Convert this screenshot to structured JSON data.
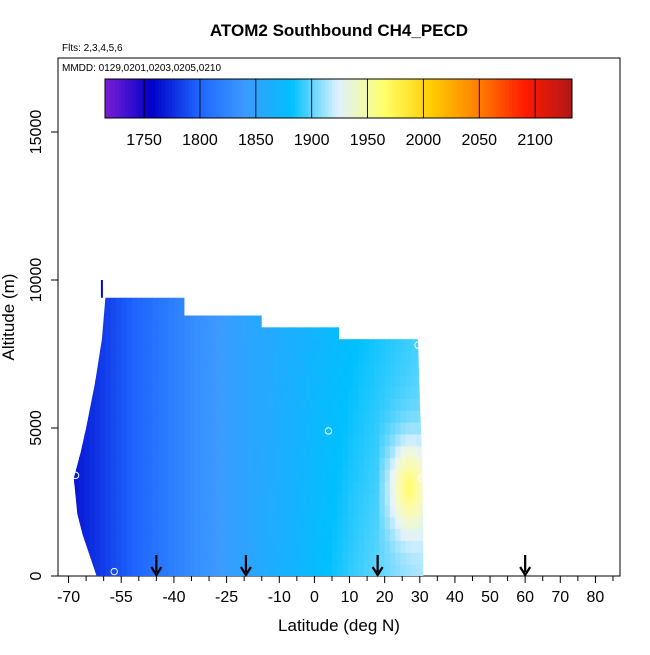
{
  "chart_data": {
    "type": "heatmap",
    "title": "ATOM2 Southbound CH4_PECD",
    "flights_label": "Flts: 2,3,4,5,6",
    "dates_label": "MMDD: 0129,0201,0203,0205,0210",
    "xlabel": "Latitude (deg N)",
    "ylabel": "Altitude (m)",
    "xlim": [
      -73,
      87
    ],
    "ylim": [
      0,
      17500
    ],
    "xticks": [
      -70,
      -55,
      -40,
      -25,
      -10,
      0,
      10,
      20,
      30,
      40,
      50,
      60,
      70,
      80
    ],
    "xminor_step": 5,
    "yticks": [
      0,
      5000,
      10000,
      15000
    ],
    "colorbar": {
      "range": [
        1715,
        2133
      ],
      "ticks": [
        1750,
        1800,
        1850,
        1900,
        1950,
        2000,
        2050,
        2100
      ],
      "colors": [
        "#7a1fd6",
        "#0000c8",
        "#1e64ff",
        "#3c9aff",
        "#00c0ff",
        "#dff2ff",
        "#ffff66",
        "#ffcc00",
        "#ff7f00",
        "#ff1a00",
        "#b01818"
      ]
    },
    "field": {
      "latitude_step_deg": 1.5,
      "altitude_step_m": 400,
      "domain_boundary": [
        {
          "lat": -68.5,
          "alt": 3300
        },
        {
          "lat": -67.5,
          "alt": 2100
        },
        {
          "lat": -66.0,
          "alt": 1400
        },
        {
          "lat": -64.0,
          "alt": 700
        },
        {
          "lat": -62.0,
          "alt": 0
        },
        {
          "lat": 31.0,
          "alt": 0
        },
        {
          "lat": 31.0,
          "alt": 1500
        },
        {
          "lat": 30.5,
          "alt": 4500
        },
        {
          "lat": 30.0,
          "alt": 6000
        },
        {
          "lat": 29.5,
          "alt": 8000
        },
        {
          "lat": 7.0,
          "alt": 8000
        },
        {
          "lat": 7.0,
          "alt": 8400
        },
        {
          "lat": -15.0,
          "alt": 8400
        },
        {
          "lat": -15.0,
          "alt": 8800
        },
        {
          "lat": -37.0,
          "alt": 8800
        },
        {
          "lat": -37.0,
          "alt": 9400
        },
        {
          "lat": -59.5,
          "alt": 9400
        },
        {
          "lat": -60.5,
          "alt": 8000
        },
        {
          "lat": -62.5,
          "alt": 6500
        },
        {
          "lat": -65.0,
          "alt": 5000
        },
        {
          "lat": -66.5,
          "alt": 4200
        }
      ],
      "plume_center": {
        "lat": 27,
        "alt": 3000
      }
    },
    "top_spike": {
      "lat": -60.5,
      "alt_min": 9400,
      "alt_max": 10000
    },
    "sample_markers": [
      {
        "lat": -68,
        "alt": 3400
      },
      {
        "lat": -57,
        "alt": 150
      },
      {
        "lat": 4,
        "alt": 4900
      },
      {
        "lat": 29.5,
        "alt": 7800
      },
      {
        "lat": 30.5,
        "alt": 3300
      }
    ],
    "arrows_lat": [
      -45,
      -19.5,
      18,
      60
    ]
  }
}
